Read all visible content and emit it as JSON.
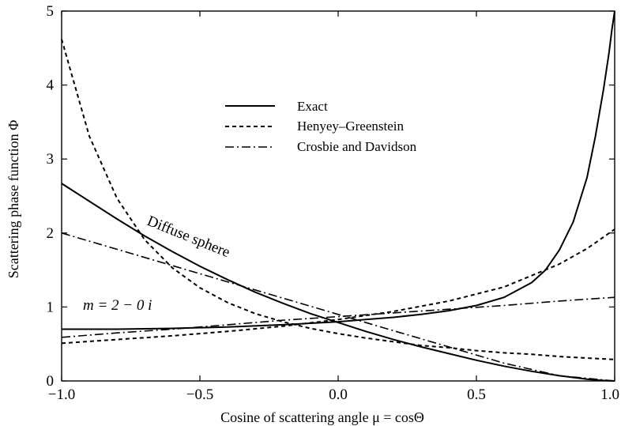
{
  "chart_data": {
    "type": "line",
    "title": "",
    "xlabel": "Cosine of scattering angle  μ = cosΘ",
    "ylabel": "Scattering phase function Φ",
    "xlim": [
      -1.0,
      1.0
    ],
    "ylim": [
      0,
      5
    ],
    "xticks": [
      -1.0,
      -0.5,
      0.0,
      0.5,
      1.0
    ],
    "xtick_labels": [
      "−1.0",
      "−0.5",
      "0.0",
      "0.5",
      "1.0"
    ],
    "yticks": [
      0,
      1,
      2,
      3,
      4,
      5
    ],
    "ytick_labels": [
      "0",
      "1",
      "2",
      "3",
      "4",
      "5"
    ],
    "grid": false,
    "legend_position": "center-top",
    "legend": [
      {
        "label": "Exact",
        "dash": "solid"
      },
      {
        "label": "Henyey–Greenstein",
        "dash": "dashed"
      },
      {
        "label": "Crosbie and Davidson",
        "dash": "dashdot"
      }
    ],
    "annotations": [
      {
        "text": "Diffuse sphere",
        "x": -0.5,
        "y": 1.78,
        "angle": 22
      },
      {
        "text": "m = 2 − 0 i",
        "x": -0.94,
        "y": 0.85,
        "angle": 0
      }
    ],
    "series": [
      {
        "curve": "diffuse-exact",
        "dash": "solid",
        "x": [
          -1.0,
          -0.9,
          -0.8,
          -0.7,
          -0.6,
          -0.5,
          -0.4,
          -0.3,
          -0.2,
          -0.1,
          0.0,
          0.1,
          0.2,
          0.3,
          0.4,
          0.5,
          0.6,
          0.7,
          0.8,
          0.9,
          0.95,
          1.0
        ],
        "y": [
          2.67,
          2.43,
          2.19,
          1.96,
          1.75,
          1.55,
          1.37,
          1.2,
          1.05,
          0.91,
          0.79,
          0.67,
          0.56,
          0.46,
          0.37,
          0.28,
          0.2,
          0.13,
          0.07,
          0.025,
          0.008,
          0.0
        ]
      },
      {
        "curve": "diffuse-hg",
        "dash": "dashed",
        "x": [
          -1.0,
          -0.9,
          -0.8,
          -0.7,
          -0.6,
          -0.5,
          -0.4,
          -0.3,
          -0.2,
          -0.1,
          0.0,
          0.1,
          0.2,
          0.3,
          0.4,
          0.5,
          0.6,
          0.7,
          0.8,
          0.9,
          1.0
        ],
        "y": [
          4.62,
          3.31,
          2.47,
          1.91,
          1.53,
          1.26,
          1.06,
          0.91,
          0.8,
          0.71,
          0.64,
          0.58,
          0.53,
          0.48,
          0.45,
          0.41,
          0.38,
          0.36,
          0.33,
          0.31,
          0.29
        ]
      },
      {
        "curve": "diffuse-cd",
        "dash": "dashdot",
        "x": [
          -1.0,
          -0.8,
          -0.6,
          -0.4,
          -0.2,
          0.0,
          0.2,
          0.4,
          0.6,
          0.8,
          1.0
        ],
        "y": [
          2.0,
          1.78,
          1.56,
          1.34,
          1.12,
          0.9,
          0.68,
          0.46,
          0.24,
          0.07,
          0.0
        ]
      },
      {
        "curve": "m2-exact",
        "dash": "solid",
        "x": [
          -1.0,
          -0.8,
          -0.6,
          -0.4,
          -0.2,
          0.0,
          0.1,
          0.2,
          0.3,
          0.4,
          0.5,
          0.6,
          0.7,
          0.75,
          0.8,
          0.85,
          0.9,
          0.93,
          0.96,
          0.98,
          0.99,
          1.0
        ],
        "y": [
          0.7,
          0.7,
          0.71,
          0.73,
          0.76,
          0.8,
          0.83,
          0.86,
          0.9,
          0.95,
          1.02,
          1.13,
          1.33,
          1.5,
          1.77,
          2.15,
          2.75,
          3.3,
          3.95,
          4.45,
          4.75,
          5.0
        ]
      },
      {
        "curve": "m2-hg",
        "dash": "dashed",
        "x": [
          -1.0,
          -0.8,
          -0.6,
          -0.4,
          -0.2,
          0.0,
          0.2,
          0.4,
          0.6,
          0.8,
          0.9,
          1.0
        ],
        "y": [
          0.51,
          0.56,
          0.61,
          0.67,
          0.74,
          0.83,
          0.94,
          1.08,
          1.27,
          1.58,
          1.79,
          2.05
        ]
      },
      {
        "curve": "m2-cd",
        "dash": "dashdot",
        "x": [
          -1.0,
          -0.8,
          -0.6,
          -0.4,
          -0.2,
          0.0,
          0.2,
          0.4,
          0.6,
          0.8,
          1.0
        ],
        "y": [
          0.59,
          0.65,
          0.7,
          0.76,
          0.82,
          0.87,
          0.92,
          0.97,
          1.02,
          1.08,
          1.13
        ]
      }
    ]
  }
}
